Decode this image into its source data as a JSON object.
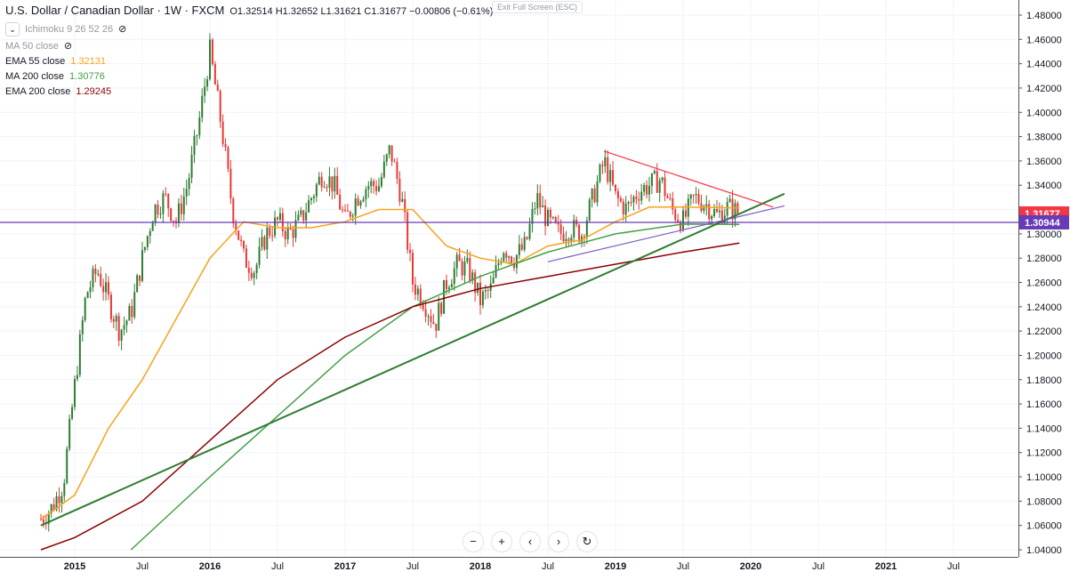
{
  "legend": {
    "symbol": "U.S. Dollar / Canadian Dollar · 1W · FXCM",
    "ohlc": "O1.32514 H1.32652 L1.31621 C1.31677 −0.00806 (−0.61%)",
    "indicators": [
      {
        "label": "Ichimoku 9 26 52 26",
        "value": "",
        "color": "#9598a1",
        "hidden": true
      },
      {
        "label": "MA 50 close",
        "value": "",
        "color": "#9598a1",
        "hidden": true
      },
      {
        "label": "EMA 55 close",
        "value": "1.32131",
        "color": "#f7a21b"
      },
      {
        "label": "MA 200 close",
        "value": "1.30776",
        "color": "#43a047"
      },
      {
        "label": "EMA 200 close",
        "value": "1.29245",
        "color": "#8b0000"
      }
    ]
  },
  "exit_fullscreen": "Exit Full Screen (ESC)",
  "nav_buttons": [
    "−",
    "+",
    "‹",
    "›",
    "↻"
  ],
  "chart_data": {
    "type": "candlestick",
    "title": "U.S. Dollar / Canadian Dollar · 1W · FXCM",
    "ylim": [
      1.04,
      1.49
    ],
    "y_ticks": [
      "1.48000",
      "1.46000",
      "1.44000",
      "1.42000",
      "1.40000",
      "1.38000",
      "1.36000",
      "1.34000",
      "1.32000",
      "1.30000",
      "1.28000",
      "1.26000",
      "1.24000",
      "1.22000",
      "1.20000",
      "1.18000",
      "1.16000",
      "1.14000",
      "1.12000",
      "1.10000",
      "1.08000",
      "1.06000",
      "1.04000"
    ],
    "x_ticks": [
      "2015",
      "Jul",
      "2016",
      "Jul",
      "2017",
      "Jul",
      "2018",
      "Jul",
      "2019",
      "Jul",
      "2020",
      "Jul",
      "2021",
      "Jul"
    ],
    "price_labels": [
      {
        "value": 1.31677,
        "text": "1.31677",
        "color": "#f23645"
      },
      {
        "value": 1.30944,
        "text": "1.30944",
        "color": "#673ab7"
      }
    ],
    "horizontal_line": 1.30944,
    "close_path": [
      [
        "2014-10",
        1.065
      ],
      [
        "2014-11",
        1.075
      ],
      [
        "2014-12",
        1.095
      ],
      [
        "2015-01",
        1.175
      ],
      [
        "2015-02",
        1.25
      ],
      [
        "2015-03",
        1.27
      ],
      [
        "2015-04",
        1.245
      ],
      [
        "2015-05",
        1.22
      ],
      [
        "2015-06",
        1.235
      ],
      [
        "2015-07",
        1.28
      ],
      [
        "2015-08",
        1.32
      ],
      [
        "2015-09",
        1.33
      ],
      [
        "2015-10",
        1.31
      ],
      [
        "2015-11",
        1.34
      ],
      [
        "2015-12",
        1.39
      ],
      [
        "2016-01",
        1.45
      ],
      [
        "2016-02",
        1.39
      ],
      [
        "2016-03",
        1.32
      ],
      [
        "2016-04",
        1.28
      ],
      [
        "2016-05",
        1.27
      ],
      [
        "2016-06",
        1.3
      ],
      [
        "2016-07",
        1.31
      ],
      [
        "2016-08",
        1.3
      ],
      [
        "2016-09",
        1.31
      ],
      [
        "2016-10",
        1.33
      ],
      [
        "2016-11",
        1.35
      ],
      [
        "2016-12",
        1.34
      ],
      [
        "2017-01",
        1.31
      ],
      [
        "2017-02",
        1.33
      ],
      [
        "2017-03",
        1.34
      ],
      [
        "2017-04",
        1.34
      ],
      [
        "2017-05",
        1.37
      ],
      [
        "2017-06",
        1.33
      ],
      [
        "2017-07",
        1.26
      ],
      [
        "2017-08",
        1.245
      ],
      [
        "2017-09",
        1.225
      ],
      [
        "2017-10",
        1.26
      ],
      [
        "2017-11",
        1.275
      ],
      [
        "2017-12",
        1.27
      ],
      [
        "2018-01",
        1.245
      ],
      [
        "2018-02",
        1.255
      ],
      [
        "2018-03",
        1.29
      ],
      [
        "2018-04",
        1.28
      ],
      [
        "2018-05",
        1.29
      ],
      [
        "2018-06",
        1.33
      ],
      [
        "2018-07",
        1.31
      ],
      [
        "2018-08",
        1.3
      ],
      [
        "2018-09",
        1.305
      ],
      [
        "2018-10",
        1.3
      ],
      [
        "2018-11",
        1.33
      ],
      [
        "2018-12",
        1.36
      ],
      [
        "2019-01",
        1.33
      ],
      [
        "2019-02",
        1.32
      ],
      [
        "2019-03",
        1.335
      ],
      [
        "2019-04",
        1.34
      ],
      [
        "2019-05",
        1.345
      ],
      [
        "2019-06",
        1.32
      ],
      [
        "2019-07",
        1.31
      ],
      [
        "2019-08",
        1.33
      ],
      [
        "2019-09",
        1.325
      ],
      [
        "2019-10",
        1.315
      ],
      [
        "2019-11",
        1.322
      ],
      [
        "2019-12",
        1.3168
      ]
    ],
    "series": [
      {
        "name": "EMA 55 close",
        "color": "#f7a21b",
        "values": [
          [
            "2014-10",
            1.065
          ],
          [
            "2015-01",
            1.085
          ],
          [
            "2015-04",
            1.14
          ],
          [
            "2015-07",
            1.18
          ],
          [
            "2015-10",
            1.23
          ],
          [
            "2016-01",
            1.28
          ],
          [
            "2016-04",
            1.31
          ],
          [
            "2016-07",
            1.305
          ],
          [
            "2016-10",
            1.305
          ],
          [
            "2017-01",
            1.31
          ],
          [
            "2017-04",
            1.32
          ],
          [
            "2017-07",
            1.32
          ],
          [
            "2017-10",
            1.29
          ],
          [
            "2018-01",
            1.28
          ],
          [
            "2018-04",
            1.275
          ],
          [
            "2018-07",
            1.29
          ],
          [
            "2018-10",
            1.295
          ],
          [
            "2019-01",
            1.31
          ],
          [
            "2019-04",
            1.322
          ],
          [
            "2019-07",
            1.322
          ],
          [
            "2019-12",
            1.32131
          ]
        ]
      },
      {
        "name": "MA 200 close",
        "color": "#43a047",
        "values": [
          [
            "2015-06",
            1.04
          ],
          [
            "2016-01",
            1.1
          ],
          [
            "2016-07",
            1.15
          ],
          [
            "2017-01",
            1.2
          ],
          [
            "2017-07",
            1.24
          ],
          [
            "2018-01",
            1.265
          ],
          [
            "2018-07",
            1.285
          ],
          [
            "2019-01",
            1.3
          ],
          [
            "2019-07",
            1.308
          ],
          [
            "2019-12",
            1.30776
          ]
        ]
      },
      {
        "name": "EMA 200 close",
        "color": "#8b0000",
        "values": [
          [
            "2014-10",
            1.04
          ],
          [
            "2015-01",
            1.05
          ],
          [
            "2015-07",
            1.08
          ],
          [
            "2016-01",
            1.13
          ],
          [
            "2016-07",
            1.18
          ],
          [
            "2017-01",
            1.215
          ],
          [
            "2017-07",
            1.24
          ],
          [
            "2018-01",
            1.255
          ],
          [
            "2018-07",
            1.265
          ],
          [
            "2019-01",
            1.275
          ],
          [
            "2019-07",
            1.285
          ],
          [
            "2019-12",
            1.29245
          ]
        ]
      }
    ],
    "trendlines": [
      {
        "name": "uptrend-support",
        "color": "#2e7d32",
        "from": [
          "2014-10",
          1.06
        ],
        "to": [
          "2020-04",
          1.333
        ]
      },
      {
        "name": "triangle-top",
        "color": "#f23645",
        "from": [
          "2018-12",
          1.368
        ],
        "to": [
          "2020-03",
          1.322
        ]
      },
      {
        "name": "triangle-bottom",
        "color": "#7e57c2",
        "from": [
          "2018-07",
          1.277
        ],
        "to": [
          "2020-04",
          1.323
        ]
      }
    ]
  }
}
